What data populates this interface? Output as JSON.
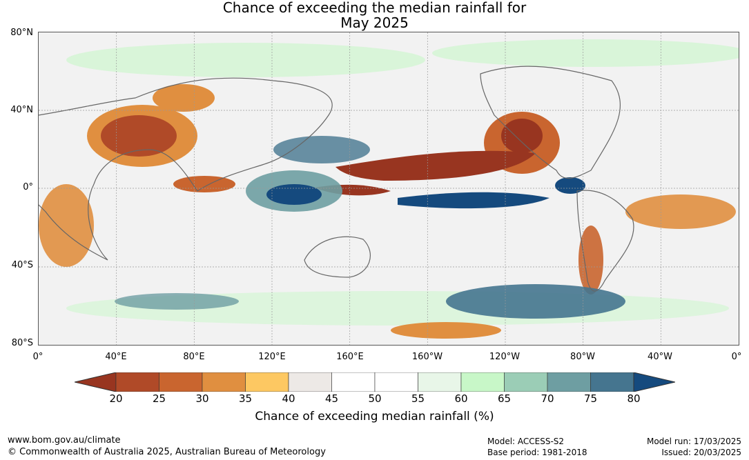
{
  "title": {
    "line1": "Chance of exceeding the median rainfall for",
    "line2": "May 2025"
  },
  "map": {
    "lat_labels": [
      "80°N",
      "40°N",
      "0°",
      "40°S",
      "80°S"
    ],
    "lon_labels": [
      "0°",
      "40°E",
      "80°E",
      "120°E",
      "160°E",
      "160°W",
      "120°W",
      "80°W",
      "40°W",
      "0°"
    ],
    "projection": "equirectangular",
    "lon_range": [
      0,
      360
    ],
    "lat_range": [
      -80,
      80
    ]
  },
  "colorbar": {
    "ticks": [
      "20",
      "25",
      "30",
      "35",
      "40",
      "45",
      "50",
      "55",
      "60",
      "65",
      "70",
      "75",
      "80"
    ],
    "colors": [
      "#983520",
      "#b04a28",
      "#c9652f",
      "#e08f40",
      "#fdc862",
      "#ede9e6",
      "#ffffff",
      "#ffffff",
      "#e8f6e8",
      "#c8f7c8",
      "#9bcdb6",
      "#6e9ea2",
      "#45758f",
      "#154a7e"
    ],
    "label": "Chance of exceeding median rainfall (%)"
  },
  "footer": {
    "url": "www.bom.gov.au/climate",
    "copyright": "© Commonwealth of Australia 2025, Australian Bureau of Meteorology",
    "model": "Model: ACCESS-S2",
    "base_period": "Base period: 1981-2018",
    "model_run": "Model run: 17/03/2025",
    "issued": "Issued: 20/03/2025"
  }
}
